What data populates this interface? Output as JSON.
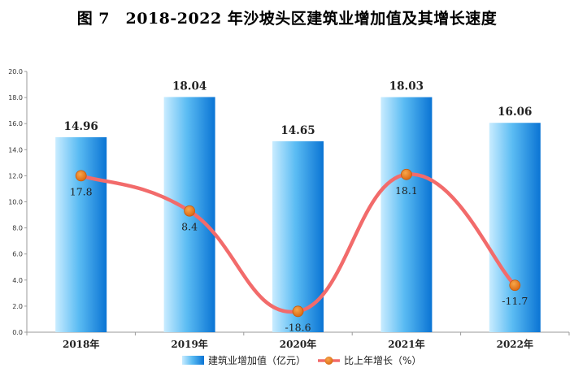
{
  "chart_data": {
    "type": "bar",
    "title": "图 7　2018-2022 年沙坡头区建筑业增加值及其增长速度",
    "categories": [
      "2018年",
      "2019年",
      "2020年",
      "2021年",
      "2022年"
    ],
    "ylim": [
      0,
      20
    ],
    "yticks": [
      "0.0",
      "2.0",
      "4.0",
      "6.0",
      "8.0",
      "10.0",
      "12.0",
      "14.0",
      "16.0",
      "18.0",
      "20.0"
    ],
    "grid": false,
    "legend_position": "bottom",
    "series": [
      {
        "name": "建筑业增加值（亿元）",
        "type": "bar",
        "values": [
          14.96,
          18.04,
          14.65,
          18.03,
          16.06
        ],
        "labels": [
          "14.96",
          "18.04",
          "14.65",
          "18.03",
          "16.06"
        ],
        "color": "#1f8ee8"
      },
      {
        "name": "比上年增长（%）",
        "type": "line",
        "values": [
          17.8,
          8.4,
          -18.6,
          18.1,
          -11.7
        ],
        "labels": [
          "17.8",
          "8.4",
          "-18.6",
          "18.1",
          "-11.7"
        ],
        "plot_on_scale": [
          12.0,
          9.3,
          1.6,
          12.1,
          3.6
        ],
        "color": "#f26b6b",
        "marker_color": "#e87a1e"
      }
    ]
  }
}
